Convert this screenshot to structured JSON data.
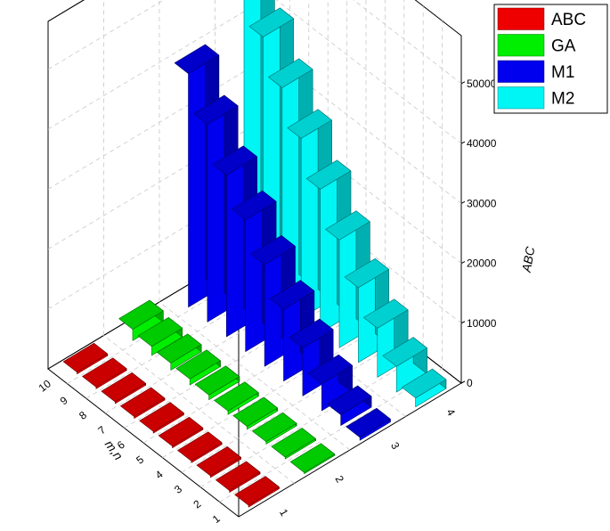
{
  "chart_data": {
    "type": "bar",
    "subtype": "3d-bar",
    "xlabel": "m,n",
    "ylabel": "ABC",
    "categories": [
      "1",
      "2",
      "3",
      "4",
      "5",
      "6",
      "7",
      "8",
      "9",
      "10"
    ],
    "depth_categories": [
      "1",
      "2",
      "3",
      "4"
    ],
    "zlim": [
      0,
      58000
    ],
    "z_ticks": [
      0,
      10000,
      20000,
      30000,
      40000,
      50000
    ],
    "z_tick_labels": [
      "0",
      "10000",
      "20000",
      "30000",
      "40000",
      "50000"
    ],
    "grid": true,
    "legend_position": "top-right",
    "series": [
      {
        "name": "ABC",
        "color": "#ee0000",
        "values": [
          300,
          300,
          300,
          300,
          300,
          300,
          300,
          300,
          300,
          300
        ]
      },
      {
        "name": "GA",
        "color": "#00ee00",
        "values": [
          200,
          300,
          400,
          500,
          600,
          800,
          1000,
          1200,
          1500,
          1900
        ]
      },
      {
        "name": "M1",
        "color": "#0000ee",
        "values": [
          500,
          1800,
          4500,
          8000,
          12000,
          17000,
          22000,
          27000,
          33000,
          39000
        ]
      },
      {
        "name": "M2",
        "color": "#00f5f5",
        "values": [
          1500,
          4300,
          8200,
          12500,
          18000,
          24000,
          30000,
          36000,
          42000,
          55000
        ]
      }
    ]
  }
}
